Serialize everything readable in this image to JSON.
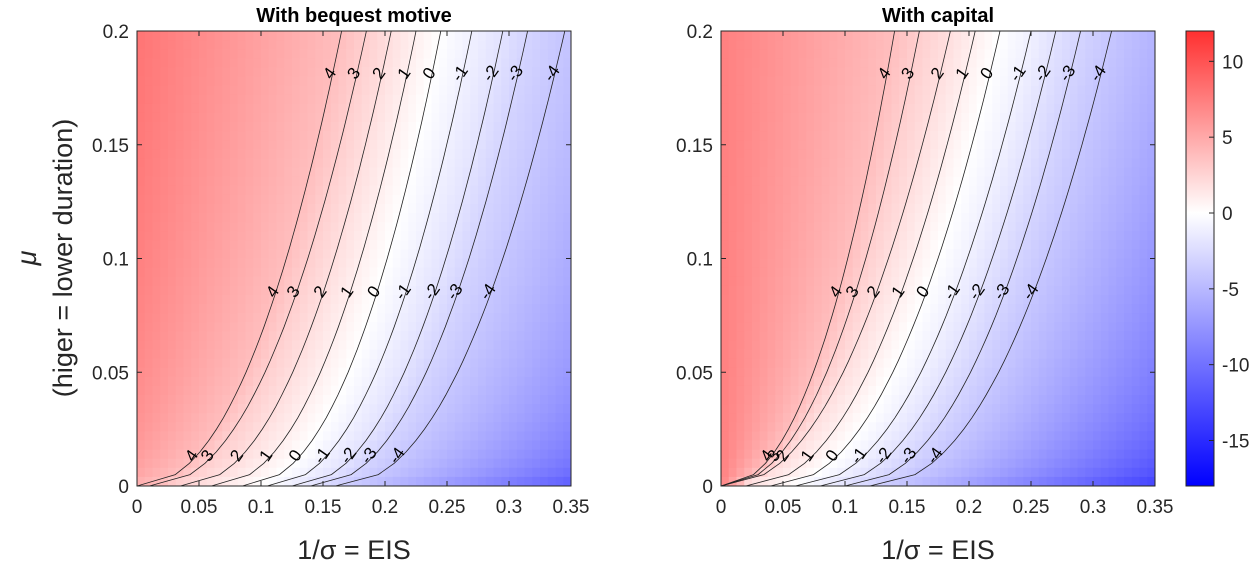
{
  "chart_data": [
    {
      "type": "heatmap",
      "subtype": "filled-contour",
      "title": "With bequest motive",
      "xlabel": "1/σ = EIS",
      "ylabel": "μ",
      "ylabel_line2": "(higer = lower duration)",
      "xlim": [
        0,
        0.35
      ],
      "ylim": [
        0,
        0.2
      ],
      "x_ticks": [
        0,
        0.05,
        0.1,
        0.15,
        0.2,
        0.25,
        0.3,
        0.35
      ],
      "x_tick_labels": [
        "0",
        "0.05",
        "0.1",
        "0.15",
        "0.2",
        "0.25",
        "0.3",
        "0.35"
      ],
      "y_ticks": [
        0,
        0.05,
        0.1,
        0.15,
        0.2
      ],
      "y_tick_labels": [
        "0",
        "0.05",
        "0.1",
        "0.15",
        "0.2"
      ],
      "contour_levels": [
        4,
        3,
        2,
        1,
        0,
        -1,
        -2,
        -3,
        -4
      ],
      "contour_label_text": [
        "4",
        "3",
        "2",
        "1",
        "0",
        "-1",
        "-2",
        "-3",
        "-4"
      ],
      "contour_x_at_y0": [
        0.0,
        0.01,
        0.035,
        0.06,
        0.085,
        0.105,
        0.125,
        0.14,
        0.16
      ],
      "contour_x_at_ytop": [
        0.165,
        0.185,
        0.205,
        0.225,
        0.245,
        0.27,
        0.295,
        0.315,
        0.345
      ],
      "value_range": [
        -18,
        12
      ]
    },
    {
      "type": "heatmap",
      "subtype": "filled-contour",
      "title": "With capital",
      "xlabel": "1/σ = EIS",
      "ylabel": "",
      "xlim": [
        0,
        0.35
      ],
      "ylim": [
        0,
        0.2
      ],
      "x_ticks": [
        0,
        0.05,
        0.1,
        0.15,
        0.2,
        0.25,
        0.3,
        0.35
      ],
      "x_tick_labels": [
        "0",
        "0.05",
        "0.1",
        "0.15",
        "0.2",
        "0.25",
        "0.3",
        "0.35"
      ],
      "y_ticks": [
        0,
        0.05,
        0.1,
        0.15,
        0.2
      ],
      "y_tick_labels": [
        "0",
        "0.05",
        "0.1",
        "0.15",
        "0.2"
      ],
      "contour_levels": [
        4,
        3,
        2,
        1,
        0,
        -1,
        -2,
        -3,
        -4
      ],
      "contour_label_text": [
        "4",
        "3",
        "2",
        "1",
        "0",
        "-1",
        "-2",
        "-3",
        "-4"
      ],
      "contour_x_at_y0": [
        0.0,
        0.0,
        0.0,
        0.02,
        0.04,
        0.06,
        0.08,
        0.1,
        0.12
      ],
      "contour_x_at_ytop": [
        0.14,
        0.16,
        0.185,
        0.205,
        0.225,
        0.25,
        0.27,
        0.29,
        0.315
      ],
      "value_range": [
        -18,
        12
      ]
    }
  ],
  "colorbar": {
    "ticks": [
      10,
      5,
      0,
      -5,
      -10,
      -15
    ],
    "tick_labels": [
      "10",
      "5",
      "0",
      "-5",
      "-10",
      "-15"
    ],
    "range": [
      -18,
      12
    ],
    "colors": {
      "high": "#ff0000",
      "mid": "#ffffff",
      "low": "#0000ff"
    }
  }
}
